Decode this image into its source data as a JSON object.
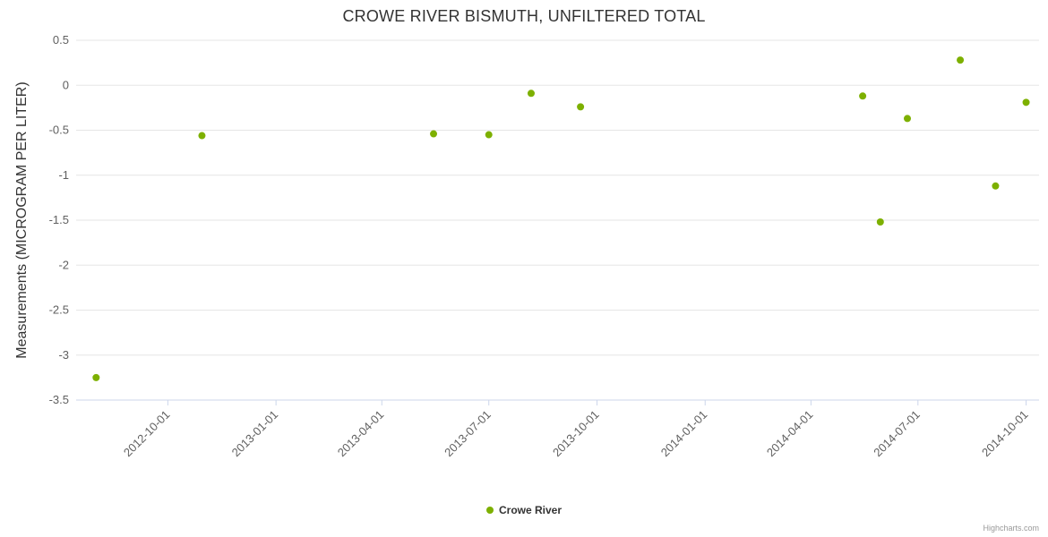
{
  "header": {
    "title": "CROWE RIVER BISMUTH, UNFILTERED TOTAL"
  },
  "legend": {
    "label": "Crowe River"
  },
  "credit": {
    "label": "Highcharts.com"
  },
  "colors": {
    "point": "#7db000",
    "grid": "#e6e6e6",
    "axis_line": "#ccd6eb",
    "tick": "#ccd6eb",
    "axis_label": "#606060",
    "title": "#333333"
  },
  "chart_data": {
    "type": "scatter",
    "title": "CROWE RIVER BISMUTH, UNFILTERED TOTAL",
    "xlabel": "",
    "ylabel": "Measurements (MICROGRAM PER LITER)",
    "legend_position": "bottom-center",
    "grid": "horizontal",
    "ylim": [
      -3.5,
      0.5
    ],
    "y_ticks": [
      0.5,
      0,
      -0.5,
      -1,
      -1.5,
      -2,
      -2.5,
      -3,
      -3.5
    ],
    "x_ticks": [
      "2012-10-01",
      "2013-01-01",
      "2013-04-01",
      "2013-07-01",
      "2013-10-01",
      "2014-01-01",
      "2014-04-01",
      "2014-07-01",
      "2014-10-01"
    ],
    "xlim": [
      "2012-07-15",
      "2014-10-12"
    ],
    "series": [
      {
        "name": "Crowe River",
        "points": [
          {
            "date": "2012-08-01",
            "value": -3.25
          },
          {
            "date": "2012-10-30",
            "value": -0.56
          },
          {
            "date": "2013-05-15",
            "value": -0.54
          },
          {
            "date": "2013-07-01",
            "value": -0.55
          },
          {
            "date": "2013-08-06",
            "value": -0.09
          },
          {
            "date": "2013-09-17",
            "value": -0.24
          },
          {
            "date": "2014-05-15",
            "value": -0.12
          },
          {
            "date": "2014-05-30",
            "value": -1.52
          },
          {
            "date": "2014-06-22",
            "value": -0.37
          },
          {
            "date": "2014-08-06",
            "value": 0.28
          },
          {
            "date": "2014-09-05",
            "value": -1.12
          },
          {
            "date": "2014-10-01",
            "value": -0.19
          }
        ]
      }
    ]
  }
}
